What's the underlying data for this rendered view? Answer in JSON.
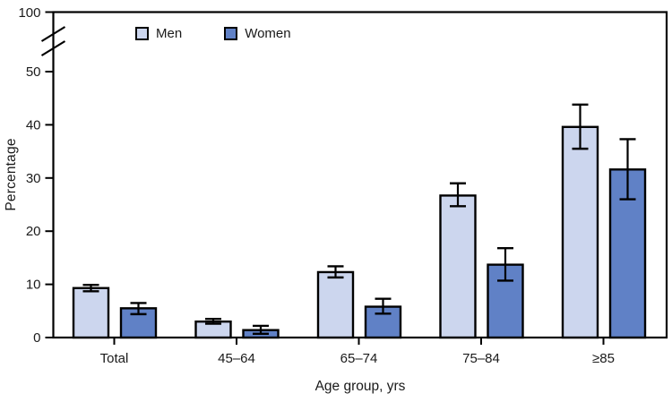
{
  "chart_data": {
    "type": "bar",
    "title": "",
    "xlabel": "Age group, yrs",
    "ylabel": "Percentage",
    "categories": [
      "Total",
      "45–64",
      "65–74",
      "75–84",
      "≥85"
    ],
    "series": [
      {
        "name": "Men",
        "color": "#ccd6ee",
        "values": [
          9.3,
          3.0,
          12.3,
          26.7,
          39.6
        ],
        "error_low": [
          8.7,
          2.6,
          11.3,
          24.7,
          35.5
        ],
        "error_high": [
          9.9,
          3.5,
          13.4,
          29.0,
          43.8
        ]
      },
      {
        "name": "Women",
        "color": "#6081c6",
        "values": [
          5.5,
          1.4,
          5.8,
          13.7,
          31.6
        ],
        "error_low": [
          4.4,
          0.7,
          4.5,
          10.7,
          26.0
        ],
        "error_high": [
          6.5,
          2.2,
          7.3,
          16.8,
          37.3
        ]
      }
    ],
    "y_ticks": [
      0,
      10,
      20,
      30,
      40,
      50
    ],
    "y_axis_top_tick": 100,
    "axis_break": true,
    "ylim_display": [
      0,
      55
    ],
    "legend_position": "top-inside",
    "grid": false,
    "frame_color": "#000000",
    "error_bar_color": "#000000",
    "bar_border_color": "#000000",
    "text_color": "#1a1a1a"
  }
}
